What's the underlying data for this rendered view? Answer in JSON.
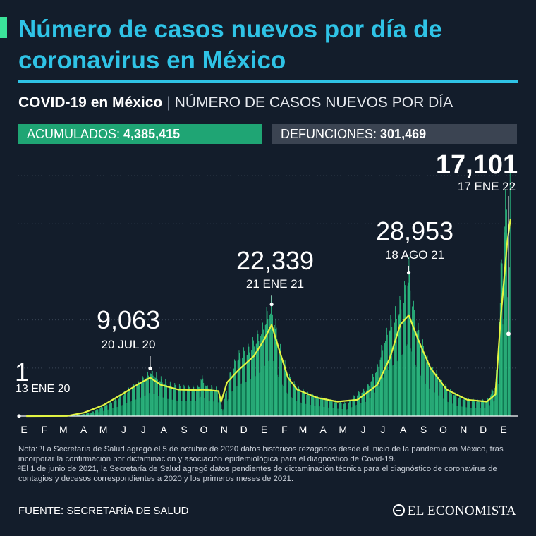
{
  "header": {
    "title": "Número de casos nuevos por día de coronavirus en México",
    "subtitle_brand": "COVID-19 en México",
    "subtitle_sep": "|",
    "subtitle_desc": "NÚMERO DE CASOS NUEVOS POR DÍA"
  },
  "stats": {
    "acumulados_label": "ACUMULADOS:",
    "acumulados_value": "4,385,415",
    "defunciones_label": "DEFUNCIONES:",
    "defunciones_value": "301,469"
  },
  "colors": {
    "background": "#131d2b",
    "title": "#2fc3e6",
    "accent_bar": "#3be39a",
    "bars": "#2fd68f",
    "bars_dark": "#0f8f5c",
    "moving_average": "#e3f542",
    "acumulados_pill": "#1fa574",
    "defunciones_pill": "#3b4452",
    "grid": "#3a4656"
  },
  "chart_data": {
    "type": "bar",
    "x_axis": {
      "start": "2020-01-01",
      "end": "2022-01-31",
      "tick_labels": [
        "E",
        "F",
        "M",
        "A",
        "M",
        "J",
        "J",
        "A",
        "S",
        "O",
        "N",
        "D",
        "E",
        "F",
        "M",
        "A",
        "M",
        "J",
        "J",
        "A",
        "S",
        "O",
        "N",
        "D",
        "E"
      ]
    },
    "ylim": [
      0,
      55000
    ],
    "grid": "horizontal",
    "series": [
      {
        "kind": "daily_cases",
        "style": "bars",
        "points": [
          [
            "2020-01-13",
            1
          ],
          [
            "2020-03-15",
            30
          ],
          [
            "2020-04-01",
            200
          ],
          [
            "2020-04-20",
            700
          ],
          [
            "2020-05-10",
            2000
          ],
          [
            "2020-05-31",
            3500
          ],
          [
            "2020-06-20",
            5500
          ],
          [
            "2020-07-10",
            7500
          ],
          [
            "2020-07-20",
            9063
          ],
          [
            "2020-08-01",
            7600
          ],
          [
            "2020-08-15",
            6500
          ],
          [
            "2020-09-01",
            5800
          ],
          [
            "2020-09-15",
            5600
          ],
          [
            "2020-10-01",
            5600
          ],
          [
            "2020-10-05",
            7800
          ],
          [
            "2020-10-15",
            5900
          ],
          [
            "2020-11-01",
            5200
          ],
          [
            "2020-11-06",
            1500
          ],
          [
            "2020-11-20",
            9000
          ],
          [
            "2020-12-01",
            12000
          ],
          [
            "2020-12-15",
            13000
          ],
          [
            "2021-01-01",
            16000
          ],
          [
            "2021-01-10",
            19000
          ],
          [
            "2021-01-21",
            22339
          ],
          [
            "2021-02-01",
            14000
          ],
          [
            "2021-02-15",
            8000
          ],
          [
            "2021-03-01",
            5500
          ],
          [
            "2021-03-15",
            4500
          ],
          [
            "2021-04-01",
            3800
          ],
          [
            "2021-04-15",
            3300
          ],
          [
            "2021-05-01",
            2800
          ],
          [
            "2021-05-15",
            2500
          ],
          [
            "2021-06-01",
            4500
          ],
          [
            "2021-06-15",
            5500
          ],
          [
            "2021-07-01",
            10000
          ],
          [
            "2021-07-15",
            17000
          ],
          [
            "2021-08-01",
            21000
          ],
          [
            "2021-08-10",
            24000
          ],
          [
            "2021-08-18",
            28953
          ],
          [
            "2021-08-25",
            21000
          ],
          [
            "2021-09-01",
            17000
          ],
          [
            "2021-09-15",
            11000
          ],
          [
            "2021-10-01",
            8000
          ],
          [
            "2021-10-15",
            5500
          ],
          [
            "2021-11-01",
            3800
          ],
          [
            "2021-11-15",
            3300
          ],
          [
            "2021-12-01",
            3000
          ],
          [
            "2021-12-15",
            3200
          ],
          [
            "2021-12-27",
            6000
          ],
          [
            "2022-01-01",
            12000
          ],
          [
            "2022-01-05",
            28000
          ],
          [
            "2022-01-10",
            39000
          ],
          [
            "2022-01-15",
            45000
          ],
          [
            "2022-01-16",
            52000
          ],
          [
            "2022-01-17",
            17101
          ],
          [
            "2022-01-19",
            46000
          ]
        ]
      },
      {
        "kind": "moving_average",
        "style": "line",
        "points": [
          [
            "2020-01-13",
            0
          ],
          [
            "2020-03-15",
            30
          ],
          [
            "2020-04-10",
            700
          ],
          [
            "2020-05-10",
            2300
          ],
          [
            "2020-06-10",
            4800
          ],
          [
            "2020-07-01",
            6600
          ],
          [
            "2020-07-20",
            8000
          ],
          [
            "2020-08-05",
            6500
          ],
          [
            "2020-09-01",
            5500
          ],
          [
            "2020-10-01",
            5400
          ],
          [
            "2020-10-08",
            5500
          ],
          [
            "2020-11-01",
            5200
          ],
          [
            "2020-11-05",
            3000
          ],
          [
            "2020-11-14",
            7000
          ],
          [
            "2020-12-01",
            9500
          ],
          [
            "2020-12-25",
            12500
          ],
          [
            "2021-01-10",
            16000
          ],
          [
            "2021-01-21",
            19000
          ],
          [
            "2021-02-01",
            14000
          ],
          [
            "2021-02-15",
            8000
          ],
          [
            "2021-03-01",
            5500
          ],
          [
            "2021-04-01",
            3800
          ],
          [
            "2021-05-01",
            3000
          ],
          [
            "2021-06-01",
            3400
          ],
          [
            "2021-07-01",
            6500
          ],
          [
            "2021-07-20",
            12000
          ],
          [
            "2021-08-05",
            19000
          ],
          [
            "2021-08-18",
            21000
          ],
          [
            "2021-09-01",
            16000
          ],
          [
            "2021-09-20",
            10000
          ],
          [
            "2021-10-15",
            5500
          ],
          [
            "2021-11-15",
            3400
          ],
          [
            "2021-12-15",
            3000
          ],
          [
            "2021-12-28",
            4500
          ],
          [
            "2022-01-05",
            20000
          ],
          [
            "2022-01-15",
            36000
          ],
          [
            "2022-01-20",
            41000
          ]
        ]
      }
    ],
    "annotations": [
      {
        "date": "2020-01-13",
        "value": 1,
        "value_label": "1",
        "date_label": "13 ENE 20"
      },
      {
        "date": "2020-07-20",
        "value": 9063,
        "value_label": "9,063",
        "date_label": "20 JUL 20"
      },
      {
        "date": "2021-01-21",
        "value": 22339,
        "value_label": "22,339",
        "date_label": "21 ENE 21"
      },
      {
        "date": "2021-08-18",
        "value": 28953,
        "value_label": "28,953",
        "date_label": "18 AGO 21"
      },
      {
        "date": "2022-01-17",
        "value": 17101,
        "value_label": "17,101",
        "date_label": "17 ENE 22"
      }
    ]
  },
  "notes": {
    "note1": "Nota: ¹La Secretaría de Salud agregó el 5 de octubre de 2020 datos históricos rezagados desde el inicio de la pandemia en México, tras incorporar la confirmación por dictaminación y asociación epidemiológica para el diagnóstico de Covid-19.",
    "note2": "²El 1 de junio de 2021, la Secretaría de Salud agregó datos pendientes de dictaminación técnica para el diagnóstico de coronavirus de contagios y decesos correspondientes a 2020 y los primeros meses de 2021."
  },
  "footer": {
    "source": "FUENTE: SECRETARÍA DE SALUD",
    "logo": "EL ECONOMISTA",
    "logo_icon": "newspaper-logo-icon"
  }
}
